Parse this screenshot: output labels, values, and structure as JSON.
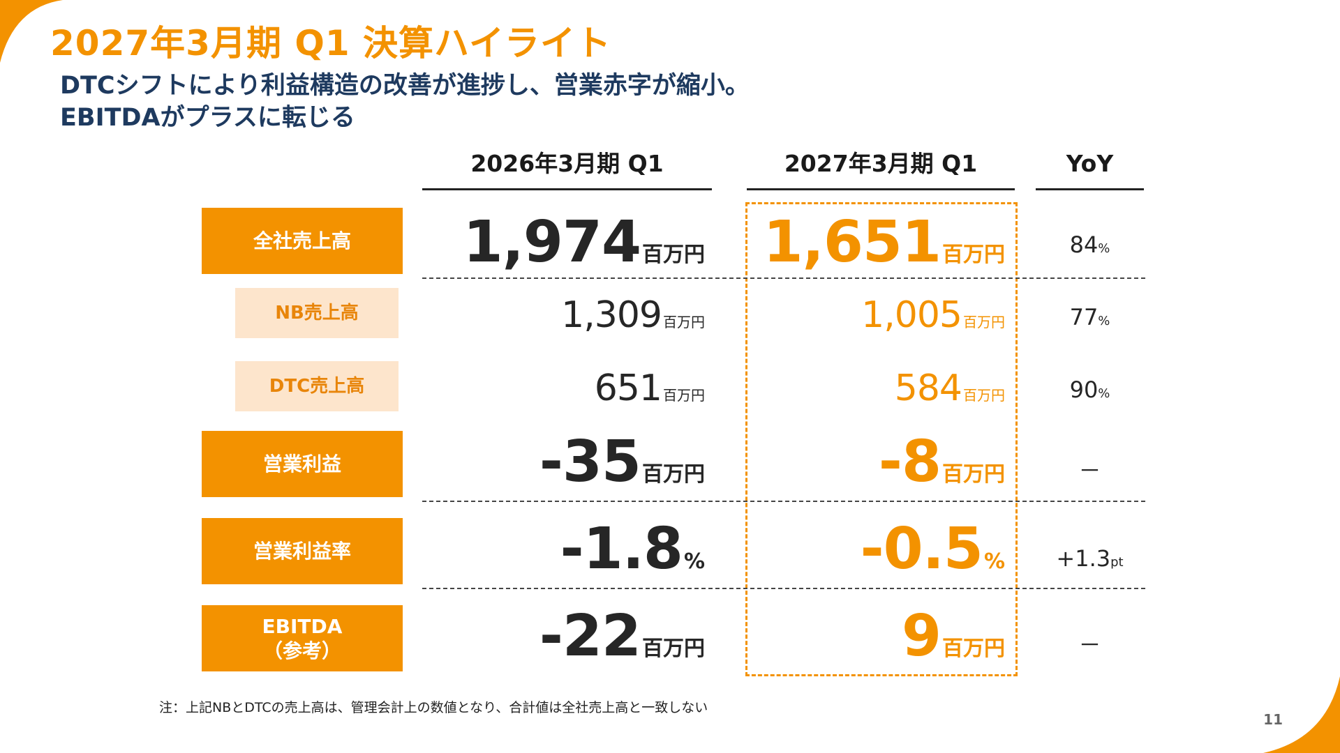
{
  "title": "2027年3月期 Q1 決算ハイライト",
  "subtitle": {
    "line1": "DTCシフトにより利益構造の改善が進捗し、営業赤字が縮小。",
    "line2": "EBITDAがプラスに転じる"
  },
  "columns": {
    "prev": "2026年3月期 Q1",
    "curr": "2027年3月期 Q1",
    "yoy": "YoY"
  },
  "rows": [
    {
      "label": "全社売上高",
      "prev": "1,974",
      "prev_unit": "百万円",
      "curr": "1,651",
      "curr_unit": "百万円",
      "yoy": "84",
      "yoy_unit": "%"
    },
    {
      "label": "NB売上高",
      "prev": "1,309",
      "prev_unit": "百万円",
      "curr": "1,005",
      "curr_unit": "百万円",
      "yoy": "77",
      "yoy_unit": "%"
    },
    {
      "label": "DTC売上高",
      "prev": "651",
      "prev_unit": "百万円",
      "curr": "584",
      "curr_unit": "百万円",
      "yoy": "90",
      "yoy_unit": "%"
    },
    {
      "label": "営業利益",
      "prev": "-35",
      "prev_unit": "百万円",
      "curr": "-8",
      "curr_unit": "百万円",
      "yoy": "－",
      "yoy_unit": ""
    },
    {
      "label": "営業利益率",
      "prev": "-1.8",
      "prev_unit": "%",
      "curr": "-0.5",
      "curr_unit": "%",
      "yoy": "+1.3",
      "yoy_unit": "pt"
    },
    {
      "label_line1": "EBITDA",
      "label_line2": "（参考）",
      "prev": "-22",
      "prev_unit": "百万円",
      "curr": "9",
      "curr_unit": "百万円",
      "yoy": "－",
      "yoy_unit": ""
    }
  ],
  "note": "注：上記NBとDTCの売上高は、管理会計上の数値となり、合計値は全社売上高と一致しない",
  "page_number": "11",
  "colors": {
    "accent": "#f39200",
    "accent_light": "#fde5cc",
    "subtitle": "#1e3a5f"
  }
}
